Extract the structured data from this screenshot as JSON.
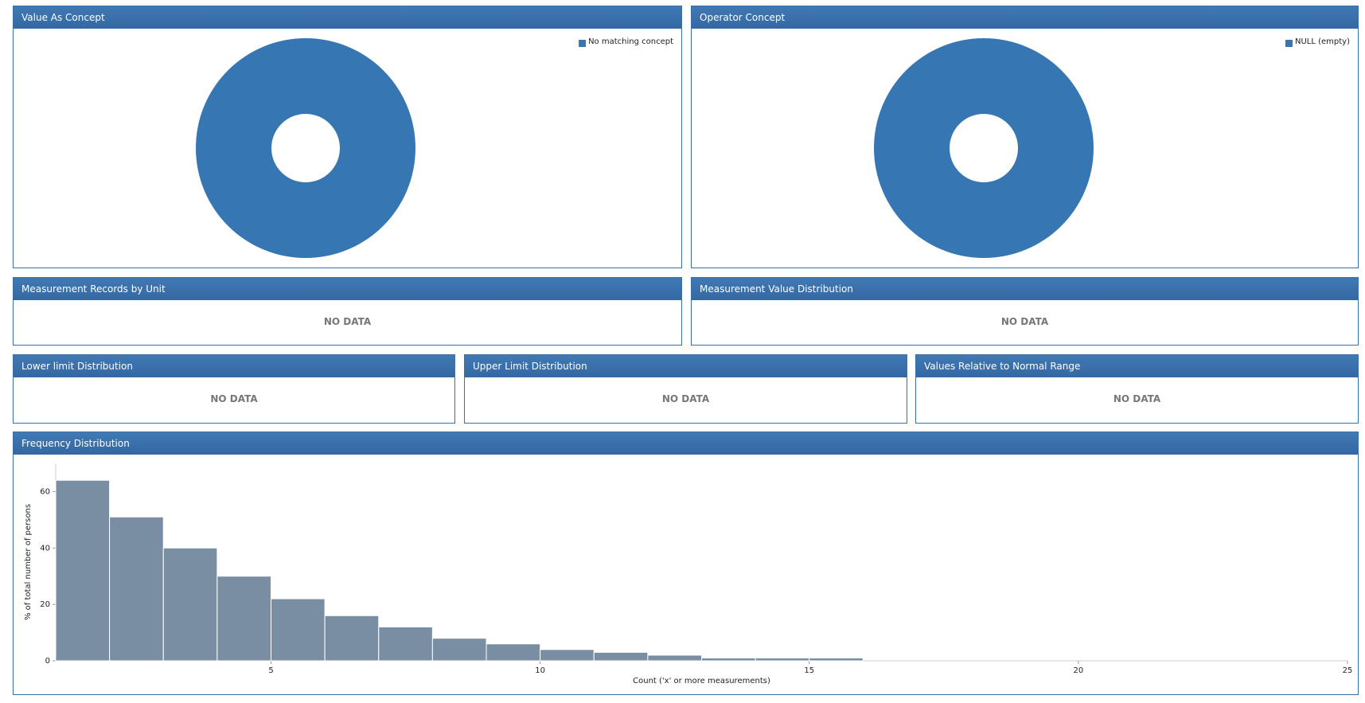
{
  "chart_data": [
    {
      "type": "pie",
      "title": "Value As Concept",
      "categories": [
        "No matching concept"
      ],
      "values": [
        100
      ],
      "colors": [
        "#3677b3"
      ],
      "legend": "top-right",
      "donut": true
    },
    {
      "type": "pie",
      "title": "Operator Concept",
      "categories": [
        "NULL (empty)"
      ],
      "values": [
        100
      ],
      "colors": [
        "#3677b3"
      ],
      "legend": "top-right",
      "donut": true
    },
    {
      "type": "histogram",
      "title": "Frequency Distribution",
      "xlabel": "Count ('x' or more measurements)",
      "ylabel": "% of total number of persons",
      "bins": [
        1,
        2,
        3,
        4,
        5,
        6,
        7,
        8,
        9,
        10,
        11,
        12,
        13,
        14,
        15,
        16
      ],
      "values": [
        64,
        51,
        40,
        30,
        22,
        16,
        12,
        8,
        6,
        4,
        3,
        2,
        1,
        1,
        1
      ],
      "color": "#7a8ea3",
      "xlim": [
        1,
        25
      ],
      "xticks": [
        5,
        10,
        15,
        20,
        25
      ],
      "ylim": [
        0,
        70
      ],
      "yticks": [
        0,
        20,
        40,
        60
      ]
    }
  ],
  "panels": [
    {
      "title": "Measurement Records by Unit",
      "message": "NO DATA"
    },
    {
      "title": "Measurement Value Distribution",
      "message": "NO DATA"
    },
    {
      "title": "Lower limit Distribution",
      "message": "NO DATA"
    },
    {
      "title": "Upper Limit Distribution",
      "message": "NO DATA"
    },
    {
      "title": "Values Relative to Normal Range",
      "message": "NO DATA"
    }
  ]
}
